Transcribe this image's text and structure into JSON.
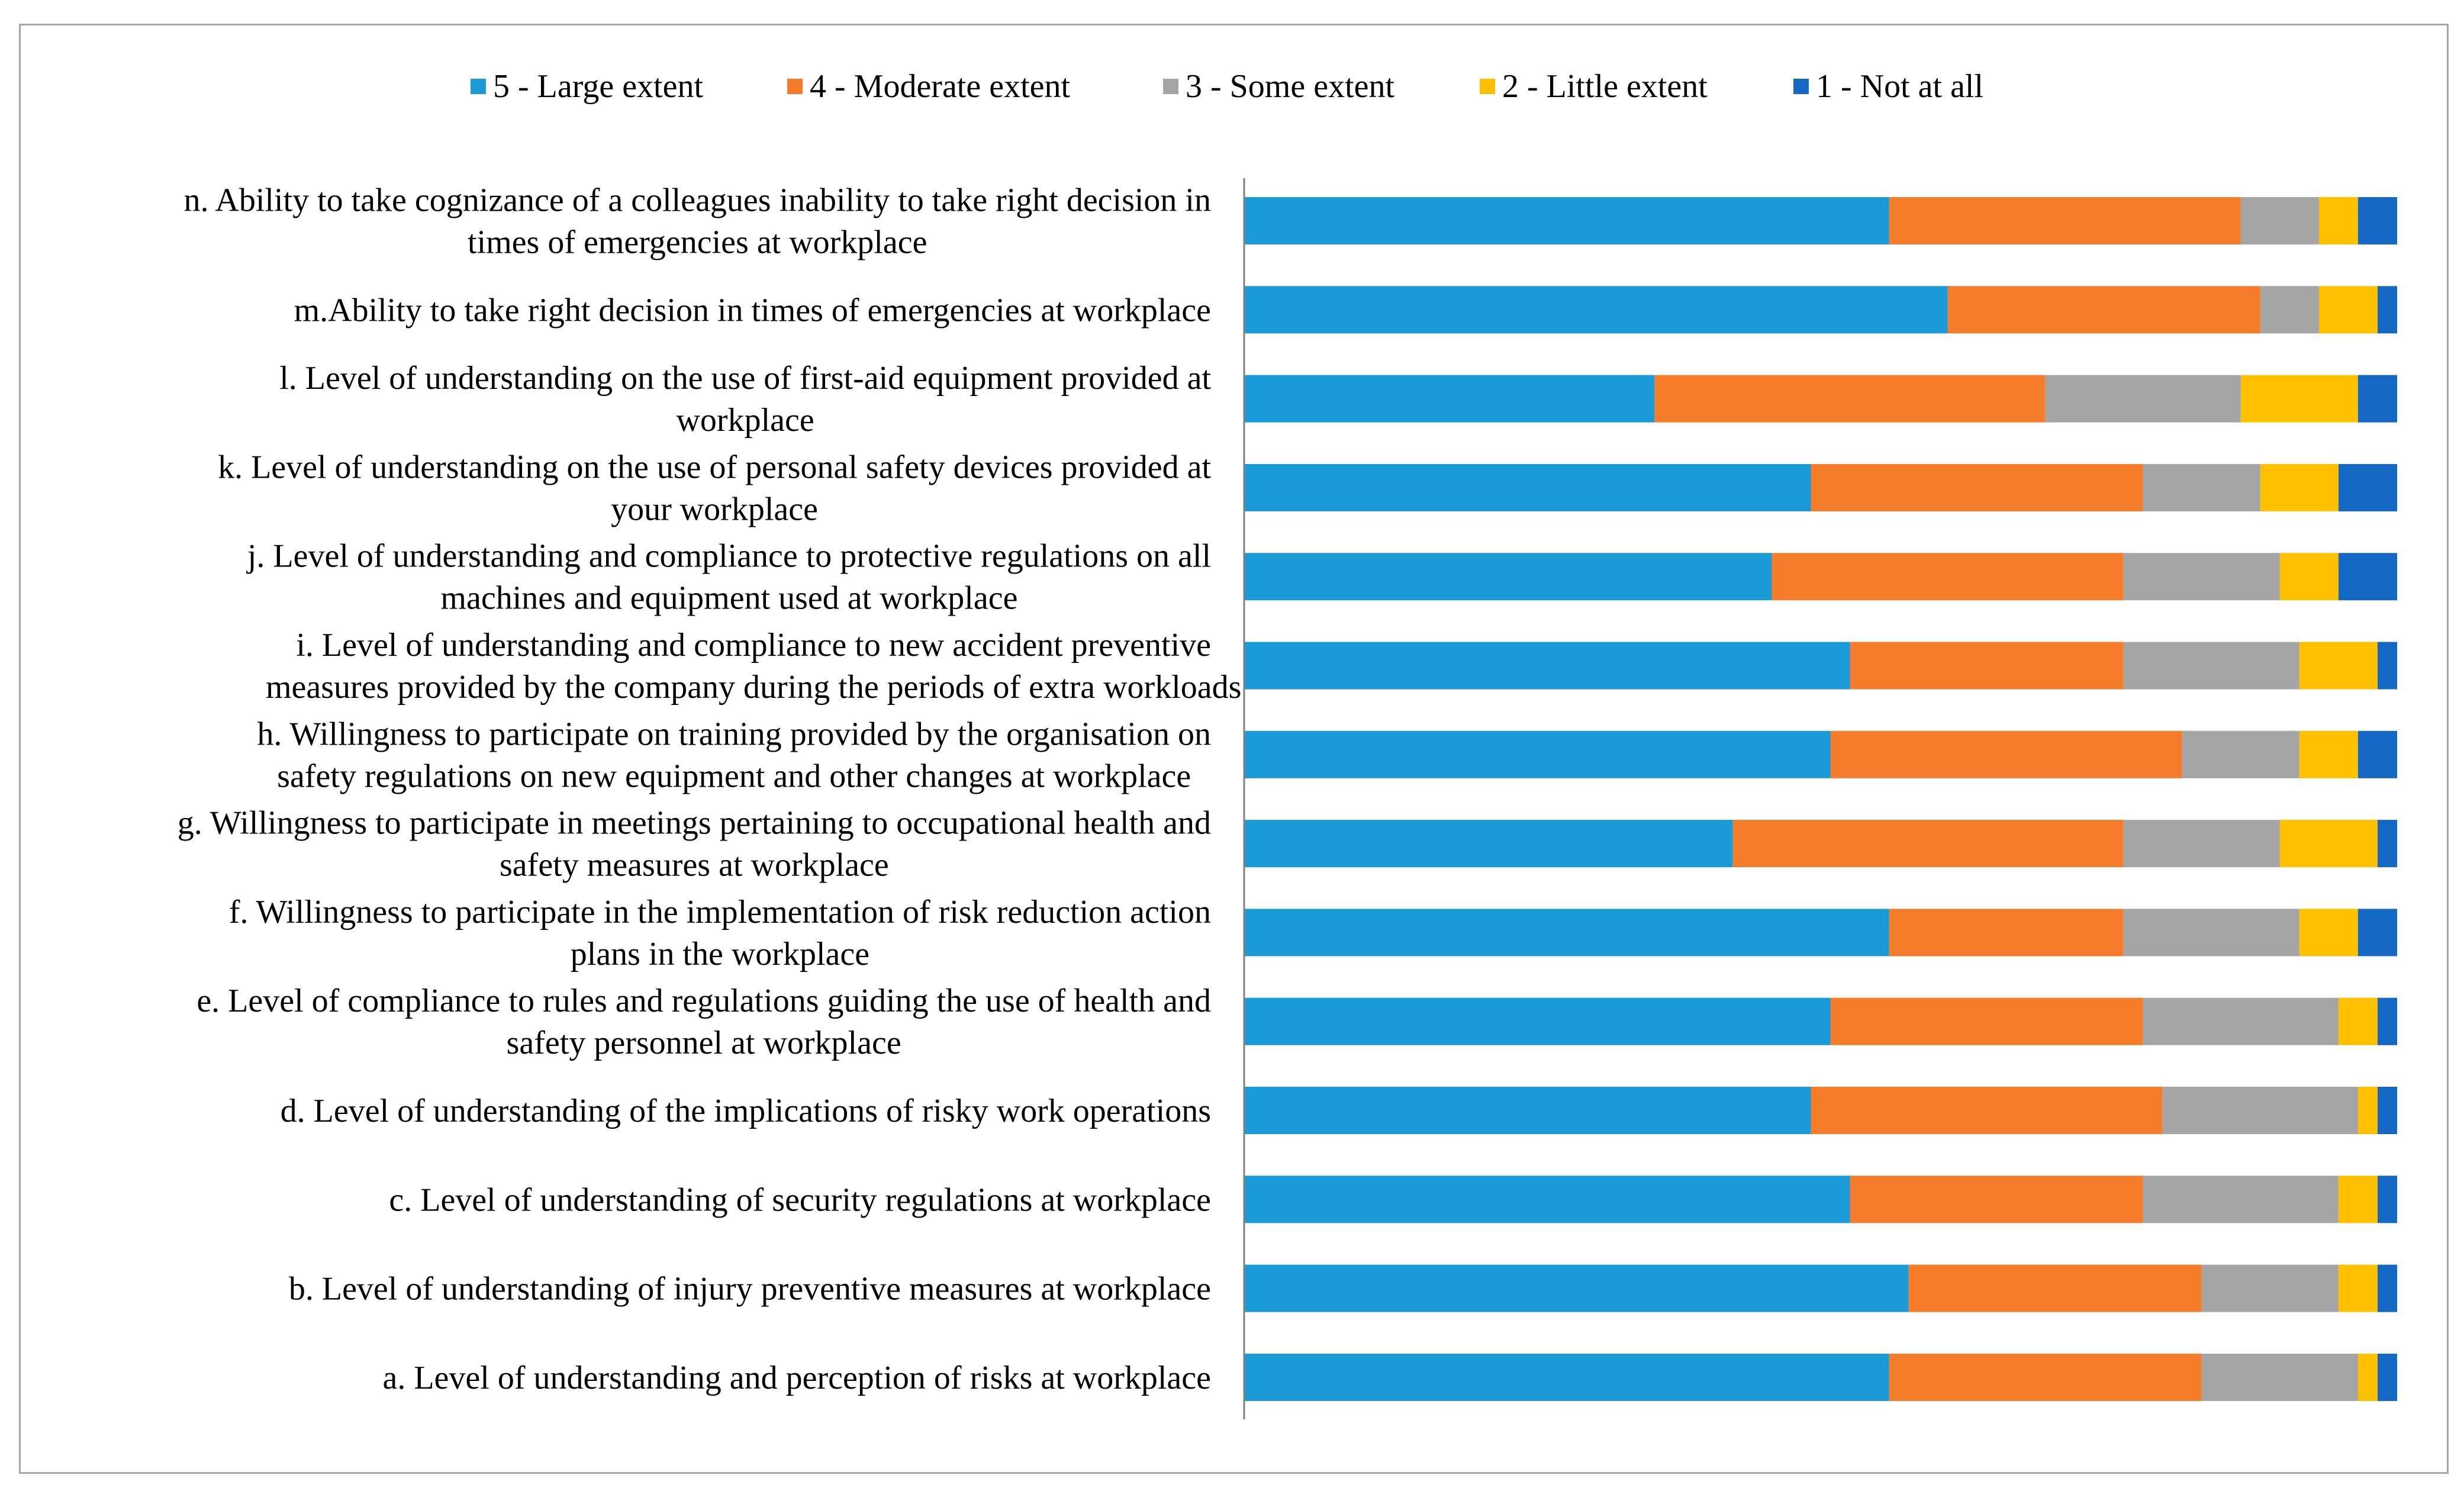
{
  "chart_data": {
    "type": "bar",
    "orientation": "horizontal",
    "stacked": "100%",
    "title": "",
    "xlabel": "",
    "ylabel": "",
    "xlim": [
      0,
      100
    ],
    "grid": false,
    "legend_position": "top",
    "colors": [
      "#1b9ad8",
      "#f57c2a",
      "#a5a5a5",
      "#ffc000",
      "#1468c4"
    ],
    "categories": [
      [
        "n. Ability to take cognizance of a colleagues inability to take right decision in",
        "times of emergencies at workplace"
      ],
      [
        "m.Ability to take right decision in times of emergencies at workplace"
      ],
      [
        "l.  Level of understanding on the use of first-aid equipment provided at",
        "workplace"
      ],
      [
        "k. Level of understanding on the use of personal safety devices provided at",
        "your workplace"
      ],
      [
        "j.  Level of understanding and compliance to protective regulations on all",
        "machines and equipment used at workplace"
      ],
      [
        "i.  Level of understanding and compliance to new accident preventive",
        "measures provided by the company during the periods of extra workloads"
      ],
      [
        "h. Willingness to participate on training provided by the organisation on",
        "safety regulations on new equipment and other changes at workplace"
      ],
      [
        "g. Willingness to participate in meetings pertaining to occupational health and",
        "safety measures at workplace"
      ],
      [
        "f.  Willingness to participate in the implementation of risk reduction action",
        "plans in the workplace"
      ],
      [
        "e. Level of compliance to rules and regulations guiding the use of health and",
        "safety personnel at workplace"
      ],
      [
        "d. Level of understanding of the implications of risky work operations"
      ],
      [
        "c. Level of understanding of security regulations at workplace"
      ],
      [
        "b. Level of understanding of injury preventive measures at workplace"
      ],
      [
        "a. Level of understanding and perception of risks at workplace"
      ]
    ],
    "series": [
      {
        "name": "5 - Large extent",
        "values": [
          33,
          36,
          21,
          29,
          27,
          31,
          30,
          25,
          33,
          30,
          29,
          31,
          34,
          33
        ]
      },
      {
        "name": "4 - Moderate extent",
        "values": [
          18,
          16,
          20,
          17,
          18,
          14,
          18,
          20,
          12,
          16,
          18,
          15,
          15,
          16
        ]
      },
      {
        "name": "3 - Some extent",
        "values": [
          4,
          3,
          10,
          6,
          8,
          9,
          6,
          8,
          9,
          10,
          10,
          10,
          7,
          8
        ]
      },
      {
        "name": "2 - Little extent",
        "values": [
          2,
          3,
          6,
          4,
          3,
          4,
          3,
          5,
          3,
          2,
          1,
          2,
          2,
          1
        ]
      },
      {
        "name": "1 - Not at all",
        "values": [
          2,
          1,
          2,
          3,
          3,
          1,
          2,
          1,
          2,
          1,
          1,
          1,
          1,
          1
        ]
      }
    ]
  }
}
